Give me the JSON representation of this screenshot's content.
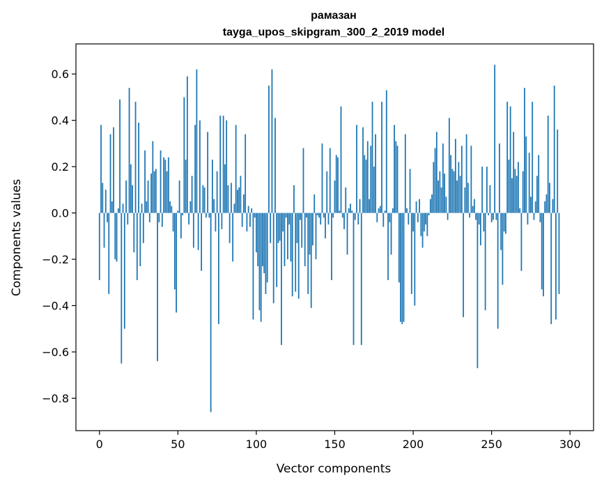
{
  "chart_data": {
    "type": "bar",
    "title": "рамазан",
    "subtitle": "tayga_upos_skipgram_300_2_2019 model",
    "xlabel": "Vector components",
    "ylabel": "Components values",
    "xlim": [
      -15,
      315
    ],
    "ylim": [
      -0.94,
      0.73
    ],
    "xticks": [
      0,
      50,
      100,
      150,
      200,
      250,
      300
    ],
    "xtick_labels": [
      "0",
      "50",
      "100",
      "150",
      "200",
      "250",
      "300"
    ],
    "yticks": [
      -0.8,
      -0.6,
      -0.4,
      -0.2,
      0.0,
      0.2,
      0.4,
      0.6
    ],
    "ytick_labels": [
      "−0.8",
      "−0.6",
      "−0.4",
      "−0.2",
      "0.0",
      "0.2",
      "0.4",
      "0.6"
    ],
    "grid": false,
    "bar_color": "#1f77b4",
    "values": [
      -0.29,
      0.38,
      0.13,
      -0.15,
      0.1,
      -0.04,
      -0.35,
      0.34,
      0.05,
      0.37,
      -0.2,
      -0.21,
      0.02,
      0.49,
      -0.65,
      0.04,
      -0.5,
      0.14,
      -0.05,
      0.54,
      0.21,
      0.12,
      -0.17,
      0.48,
      -0.29,
      0.39,
      -0.23,
      0.04,
      -0.13,
      0.27,
      0.05,
      0.14,
      -0.04,
      0.17,
      0.31,
      0.18,
      0.19,
      -0.64,
      -0.04,
      0.27,
      -0.06,
      0.24,
      0.23,
      0.18,
      0.24,
      0.05,
      0.03,
      -0.08,
      -0.33,
      -0.43,
      0.01,
      0.14,
      -0.11,
      -0.01,
      0.5,
      0.23,
      0.59,
      -0.05,
      0.05,
      0.16,
      -0.15,
      0.38,
      0.62,
      -0.16,
      0.4,
      -0.25,
      0.12,
      0.11,
      -0.02,
      0.35,
      -0.02,
      -0.86,
      0.23,
      0.06,
      -0.08,
      0.18,
      -0.48,
      0.42,
      -0.07,
      0.42,
      0.21,
      0.4,
      0.12,
      -0.13,
      0.13,
      -0.21,
      0.04,
      0.38,
      0.1,
      0.11,
      0.16,
      -0.06,
      0.08,
      0.34,
      -0.08,
      0.03,
      -0.06,
      0.02,
      -0.46,
      -0.02,
      -0.17,
      -0.23,
      -0.42,
      -0.47,
      -0.23,
      -0.26,
      -0.35,
      -0.3,
      0.55,
      -0.13,
      0.62,
      -0.39,
      0.41,
      -0.32,
      -0.13,
      -0.12,
      -0.57,
      -0.08,
      -0.23,
      -0.02,
      -0.2,
      -0.05,
      -0.21,
      -0.36,
      0.12,
      -0.34,
      -0.13,
      -0.37,
      -0.03,
      -0.15,
      0.28,
      -0.23,
      -0.02,
      -0.35,
      -0.18,
      -0.41,
      -0.14,
      0.08,
      -0.2,
      -0.01,
      -0.02,
      -0.05,
      0.3,
      -0.02,
      -0.11,
      0.18,
      -0.05,
      0.28,
      -0.29,
      -0.02,
      0.14,
      0.25,
      0.24,
      0.01,
      0.46,
      -0.02,
      -0.07,
      0.11,
      -0.18,
      0.02,
      0.04,
      0.01,
      -0.57,
      -0.03,
      0.38,
      -0.05,
      0.06,
      -0.57,
      0.37,
      0.25,
      0.23,
      0.31,
      0.06,
      0.29,
      0.48,
      0.2,
      0.34,
      -0.04,
      0.02,
      0.03,
      0.48,
      -0.06,
      0.01,
      0.53,
      -0.29,
      -0.04,
      -0.18,
      0.02,
      0.38,
      0.31,
      0.29,
      -0.3,
      -0.47,
      -0.48,
      -0.47,
      0.34,
      0.02,
      -0.05,
      0.19,
      -0.35,
      -0.08,
      -0.4,
      0.05,
      -0.04,
      0.06,
      -0.1,
      -0.15,
      -0.08,
      -0.05,
      -0.1,
      -0.01,
      0.06,
      0.08,
      0.22,
      0.28,
      0.35,
      0.14,
      0.18,
      0.11,
      0.3,
      0.17,
      0.07,
      -0.03,
      0.41,
      0.25,
      0.19,
      0.18,
      0.32,
      0.14,
      0.22,
      0.16,
      0.29,
      -0.45,
      0.11,
      0.34,
      0.13,
      -0.02,
      0.29,
      0.03,
      0.06,
      -0.03,
      -0.67,
      -0.05,
      -0.14,
      0.2,
      -0.08,
      -0.42,
      0.2,
      -0.01,
      0.12,
      -0.04,
      -0.03,
      0.64,
      -0.03,
      -0.5,
      0.3,
      -0.16,
      -0.31,
      -0.08,
      -0.09,
      0.48,
      0.23,
      0.46,
      0.15,
      0.35,
      0.19,
      0.16,
      0.22,
      0.02,
      -0.25,
      0.18,
      0.54,
      0.33,
      -0.05,
      0.26,
      0.07,
      0.48,
      -0.03,
      0.05,
      0.16,
      0.25,
      -0.04,
      -0.33,
      -0.36,
      0.05,
      0.08,
      0.42,
      0.13,
      -0.48,
      0.06,
      0.55,
      -0.46,
      0.36,
      -0.35
    ]
  }
}
